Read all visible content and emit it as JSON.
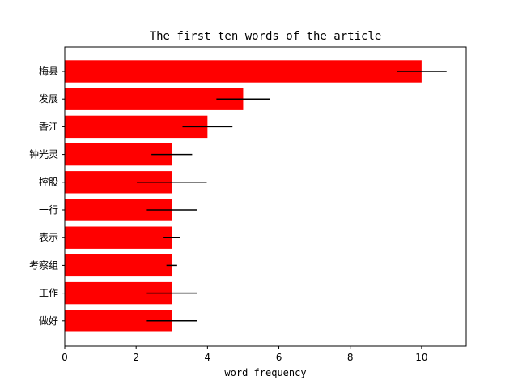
{
  "chart_data": {
    "type": "bar",
    "orientation": "horizontal",
    "title": "The first ten words of the article",
    "xlabel": "word frequency",
    "ylabel": "",
    "categories": [
      "梅县",
      "发展",
      "香江",
      "钟光灵",
      "控股",
      "一行",
      "表示",
      "考察组",
      "工作",
      "做好"
    ],
    "values": [
      10,
      5,
      4,
      3,
      3,
      3,
      3,
      3,
      3,
      3
    ],
    "errors": [
      0.7,
      0.75,
      0.7,
      0.57,
      0.98,
      0.7,
      0.23,
      0.15,
      0.7,
      0.7
    ],
    "xlim": [
      0,
      11.25
    ],
    "xticks": [
      0,
      2,
      4,
      6,
      8,
      10
    ],
    "xtick_labels": [
      "0",
      "2",
      "4",
      "6",
      "8",
      "10"
    ],
    "bar_color": "#ff0000",
    "error_color": "#000000",
    "grid": false,
    "legend": "none"
  }
}
